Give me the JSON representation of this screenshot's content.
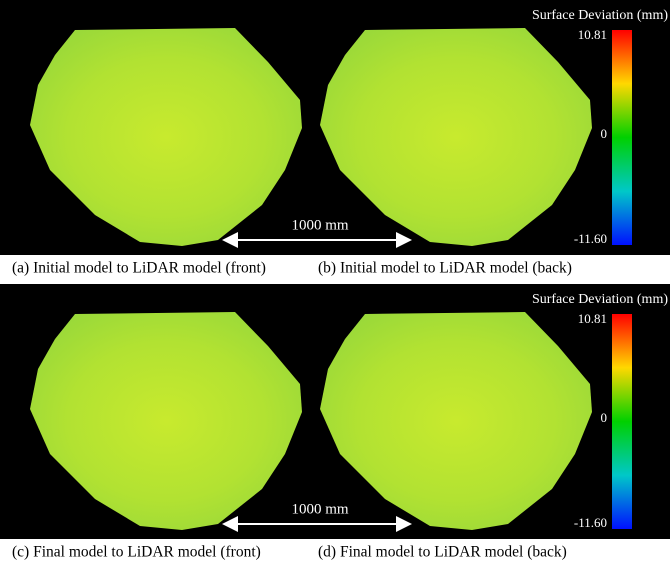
{
  "figure": {
    "panels": [
      {
        "captions": [
          "(a) Initial model to LiDAR model (front)",
          "(b) Initial model to LiDAR model (back)"
        ],
        "scale_bar": "1000 mm",
        "colorbar": {
          "title": "Surface Deviation (mm)",
          "max": "10.81",
          "mid": "0",
          "min": "-11.60"
        }
      },
      {
        "captions": [
          "(c) Final model to LiDAR model (front)",
          "(d) Final model to LiDAR model (back)"
        ],
        "scale_bar": "1000 mm",
        "colorbar": {
          "title": "Surface Deviation (mm)",
          "max": "10.81",
          "mid": "0",
          "min": "-11.60"
        }
      }
    ]
  }
}
